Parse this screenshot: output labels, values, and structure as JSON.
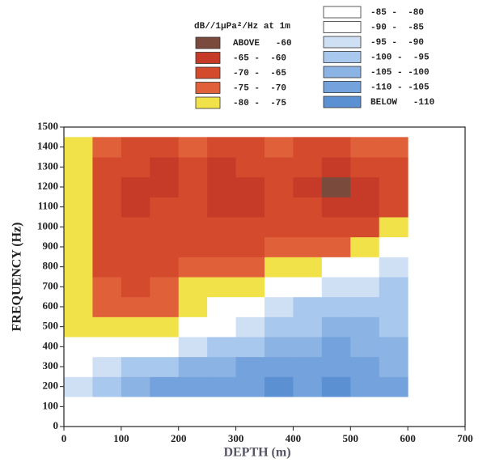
{
  "chart_data": {
    "type": "contour",
    "legend_title": "dB//1μPa²/Hz at 1m",
    "legend": [
      {
        "label": "ABOVE   -60",
        "min": -60,
        "color": "#7a4b3c"
      },
      {
        "label": "-65 -  -60",
        "min": -65,
        "max": -60,
        "color": "#c63b28"
      },
      {
        "label": "-70 -  -65",
        "min": -70,
        "max": -65,
        "color": "#d44a2c"
      },
      {
        "label": "-75 -  -70",
        "min": -75,
        "max": -70,
        "color": "#e0603a"
      },
      {
        "label": "-80 -  -75",
        "min": -80,
        "max": -75,
        "color": "#f2e24a"
      },
      {
        "label": "-85 -  -80",
        "min": -85,
        "max": -80,
        "color": "#ffffff"
      },
      {
        "label": "-90 -  -85",
        "min": -90,
        "max": -85,
        "color": "#ffffff"
      },
      {
        "label": "-95 -  -90",
        "min": -95,
        "max": -90,
        "color": "#cfe0f4"
      },
      {
        "label": "-100 -  -95",
        "min": -100,
        "max": -95,
        "color": "#a9c8ee"
      },
      {
        "label": "-105 - -100",
        "min": -105,
        "max": -100,
        "color": "#8bb3e4"
      },
      {
        "label": "-110 - -105",
        "min": -110,
        "max": -105,
        "color": "#73a2dc"
      },
      {
        "label": "BELOW   -110",
        "max": -110,
        "color": "#5b90d2"
      }
    ],
    "xlabel": "DEPTH (m)",
    "ylabel": "FREQUENCY (Hz)",
    "xlim": [
      0,
      700
    ],
    "xticks": [
      0,
      100,
      200,
      300,
      400,
      500,
      600,
      700
    ],
    "ylim": [
      0,
      1500
    ],
    "yticks": [
      0,
      100,
      200,
      300,
      400,
      500,
      600,
      700,
      800,
      900,
      1000,
      1100,
      1200,
      1300,
      1400,
      1500
    ],
    "x": [
      25,
      75,
      125,
      175,
      225,
      275,
      325,
      375,
      425,
      475,
      525,
      575
    ],
    "y": [
      200,
      300,
      400,
      500,
      600,
      700,
      800,
      900,
      1000,
      1100,
      1200,
      1300,
      1400
    ],
    "z": [
      [
        -92,
        -100,
        -104,
        -106,
        -106,
        -108,
        -110,
        -112,
        -110,
        -112,
        -108,
        -106
      ],
      [
        -88,
        -94,
        -98,
        -100,
        -102,
        -104,
        -106,
        -108,
        -106,
        -108,
        -106,
        -104
      ],
      [
        -84,
        -86,
        -88,
        -90,
        -94,
        -96,
        -100,
        -104,
        -104,
        -106,
        -104,
        -102
      ],
      [
        -80,
        -76,
        -78,
        -80,
        -86,
        -88,
        -94,
        -98,
        -100,
        -102,
        -102,
        -100
      ],
      [
        -79,
        -74,
        -72,
        -74,
        -78,
        -82,
        -86,
        -92,
        -96,
        -98,
        -100,
        -100
      ],
      [
        -79,
        -72,
        -70,
        -72,
        -76,
        -76,
        -78,
        -84,
        -88,
        -92,
        -94,
        -98
      ],
      [
        -78,
        -70,
        -68,
        -70,
        -72,
        -72,
        -74,
        -76,
        -78,
        -84,
        -88,
        -94
      ],
      [
        -78,
        -68,
        -68,
        -68,
        -70,
        -68,
        -70,
        -72,
        -72,
        -74,
        -78,
        -86
      ],
      [
        -76,
        -70,
        -66,
        -66,
        -68,
        -66,
        -66,
        -68,
        -68,
        -66,
        -70,
        -78
      ],
      [
        -76,
        -66,
        -64,
        -66,
        -66,
        -64,
        -64,
        -66,
        -66,
        -62,
        -64,
        -70
      ],
      [
        -77,
        -68,
        -64,
        -64,
        -66,
        -63,
        -64,
        -66,
        -64,
        -58,
        -64,
        -66
      ],
      [
        -77,
        -68,
        -66,
        -64,
        -66,
        -64,
        -66,
        -68,
        -66,
        -64,
        -66,
        -68
      ],
      [
        -78,
        -72,
        -68,
        -68,
        -72,
        -66,
        -68,
        -74,
        -70,
        -68,
        -72,
        -74
      ]
    ]
  }
}
